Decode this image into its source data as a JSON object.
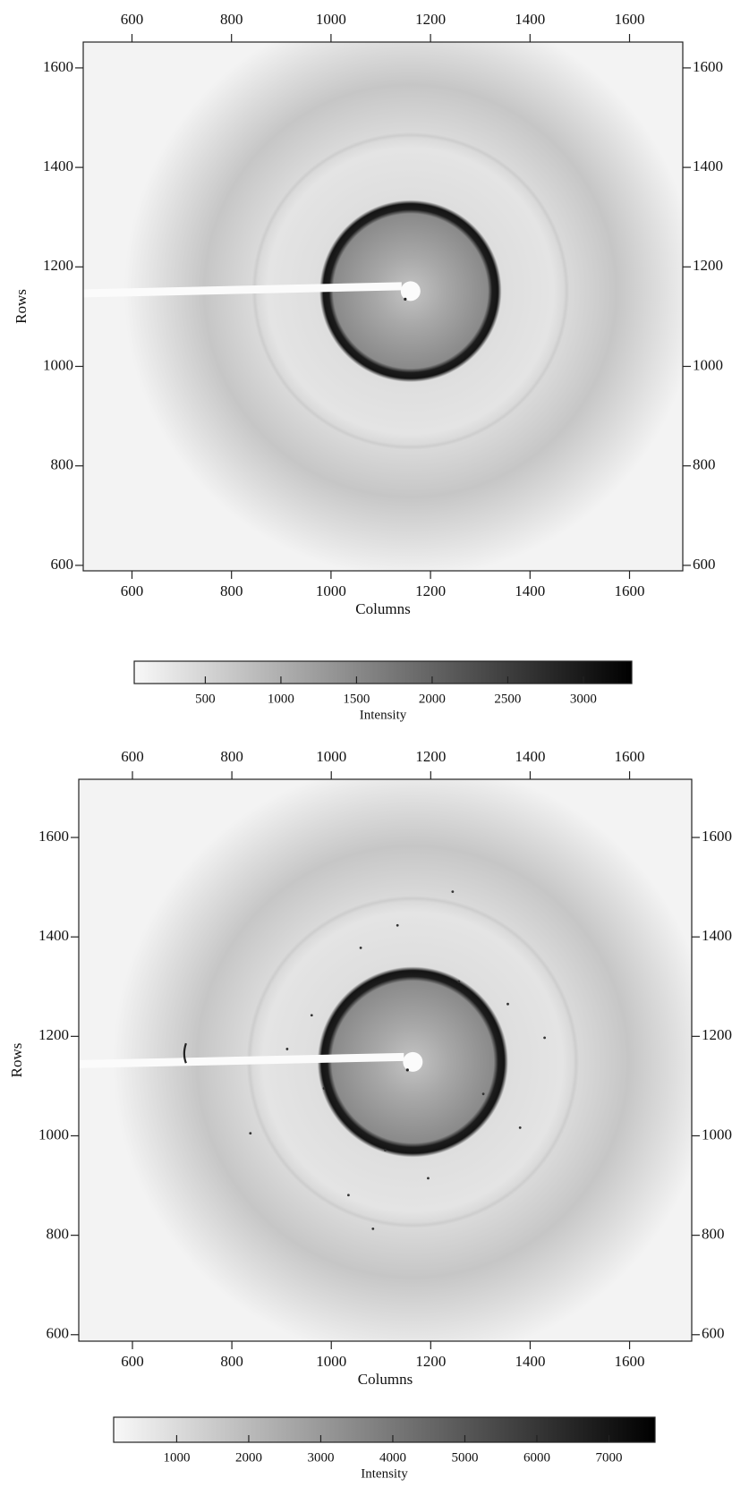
{
  "chart_data": [
    {
      "type": "image",
      "xlabel": "Columns",
      "ylabel": "Rows",
      "xlim": [
        502,
        1707
      ],
      "ylim": [
        589,
        1652
      ],
      "xticks": [
        600,
        800,
        1000,
        1200,
        1400,
        1600
      ],
      "yticks": [
        600,
        800,
        1000,
        1200,
        1400,
        1600
      ],
      "colormap": "gray_r",
      "colorbar": {
        "label": "Intensity",
        "lim": [
          30,
          3320
        ],
        "ticks": [
          500,
          1000,
          1500,
          2000,
          2500,
          3000
        ]
      }
    },
    {
      "type": "image",
      "xlabel": "Columns",
      "ylabel": "Rows",
      "xlim": [
        492,
        1725
      ],
      "ylim": [
        587,
        1717
      ],
      "xticks": [
        600,
        800,
        1000,
        1200,
        1400,
        1600
      ],
      "yticks": [
        600,
        800,
        1000,
        1200,
        1400,
        1600
      ],
      "colormap": "gray_r",
      "colorbar": {
        "label": "Intensity",
        "lim": [
          125,
          7640
        ],
        "ticks": [
          1000,
          2000,
          3000,
          4000,
          5000,
          6000,
          7000
        ]
      }
    }
  ]
}
